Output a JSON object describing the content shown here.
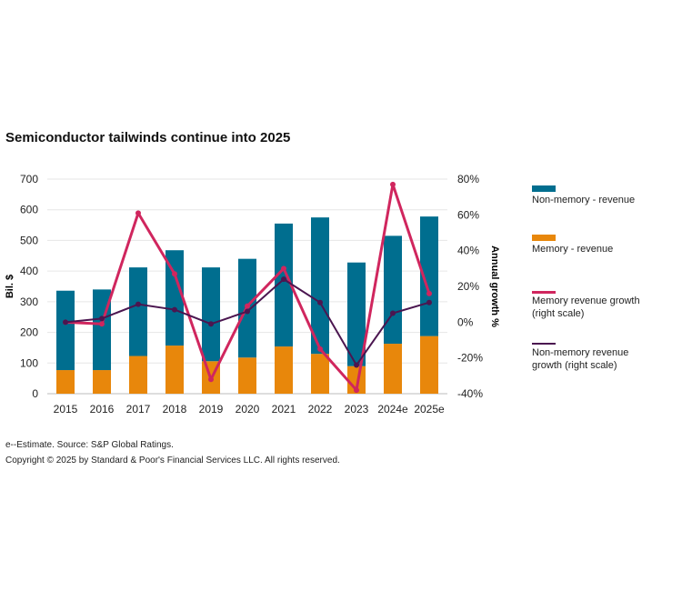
{
  "chart_data": {
    "type": "bar",
    "title": "Semiconductor tailwinds continue into 2025",
    "categories": [
      "2015",
      "2016",
      "2017",
      "2018",
      "2019",
      "2020",
      "2021",
      "2022",
      "2023",
      "2024e",
      "2025e"
    ],
    "ylabel": "Bil. $",
    "ylim": [
      0,
      700
    ],
    "yticks": [
      "0",
      "100",
      "200",
      "300",
      "400",
      "500",
      "600",
      "700"
    ],
    "y2label": "Annual growth %",
    "y2lim": [
      -40,
      80
    ],
    "y2ticks": [
      "-40%",
      "-20%",
      "0%",
      "20%",
      "40%",
      "60%",
      "80%"
    ],
    "grid": true,
    "legend_position": "right",
    "stacked": true,
    "series": [
      {
        "name": "Non-memory - revenue",
        "kind": "bar",
        "color": "#006e8f",
        "values": [
          259,
          263,
          289,
          311,
          306,
          322,
          401,
          445,
          338,
          352,
          390
        ]
      },
      {
        "name": "Memory - revenue",
        "kind": "bar",
        "color": "#e8870b",
        "values": [
          77,
          77,
          123,
          157,
          106,
          118,
          154,
          130,
          90,
          163,
          188
        ]
      },
      {
        "name": "Memory revenue growth (right scale)",
        "kind": "line",
        "axis": "right",
        "color": "#d0265e",
        "values": [
          0,
          -1,
          61,
          27,
          -32,
          9,
          30,
          -15,
          -38,
          77,
          16
        ]
      },
      {
        "name": "Non-memory revenue growth (right scale)",
        "kind": "line",
        "axis": "right",
        "color": "#4b1650",
        "values": [
          0,
          2,
          10,
          7,
          -1,
          6,
          24,
          11,
          -24,
          5,
          11
        ]
      }
    ]
  },
  "legend": {
    "nonmem_rev": "Non-memory - revenue",
    "mem_rev": "Memory - revenue",
    "mem_growth_1": "Memory revenue growth",
    "mem_growth_2": "(right scale)",
    "nonmem_growth_1": "Non-memory revenue",
    "nonmem_growth_2": "growth (right scale)"
  },
  "footnote": "e--Estimate. Source: S&P Global Ratings.",
  "copyright": "Copyright © 2025 by Standard & Poor's Financial Services LLC. All rights reserved."
}
